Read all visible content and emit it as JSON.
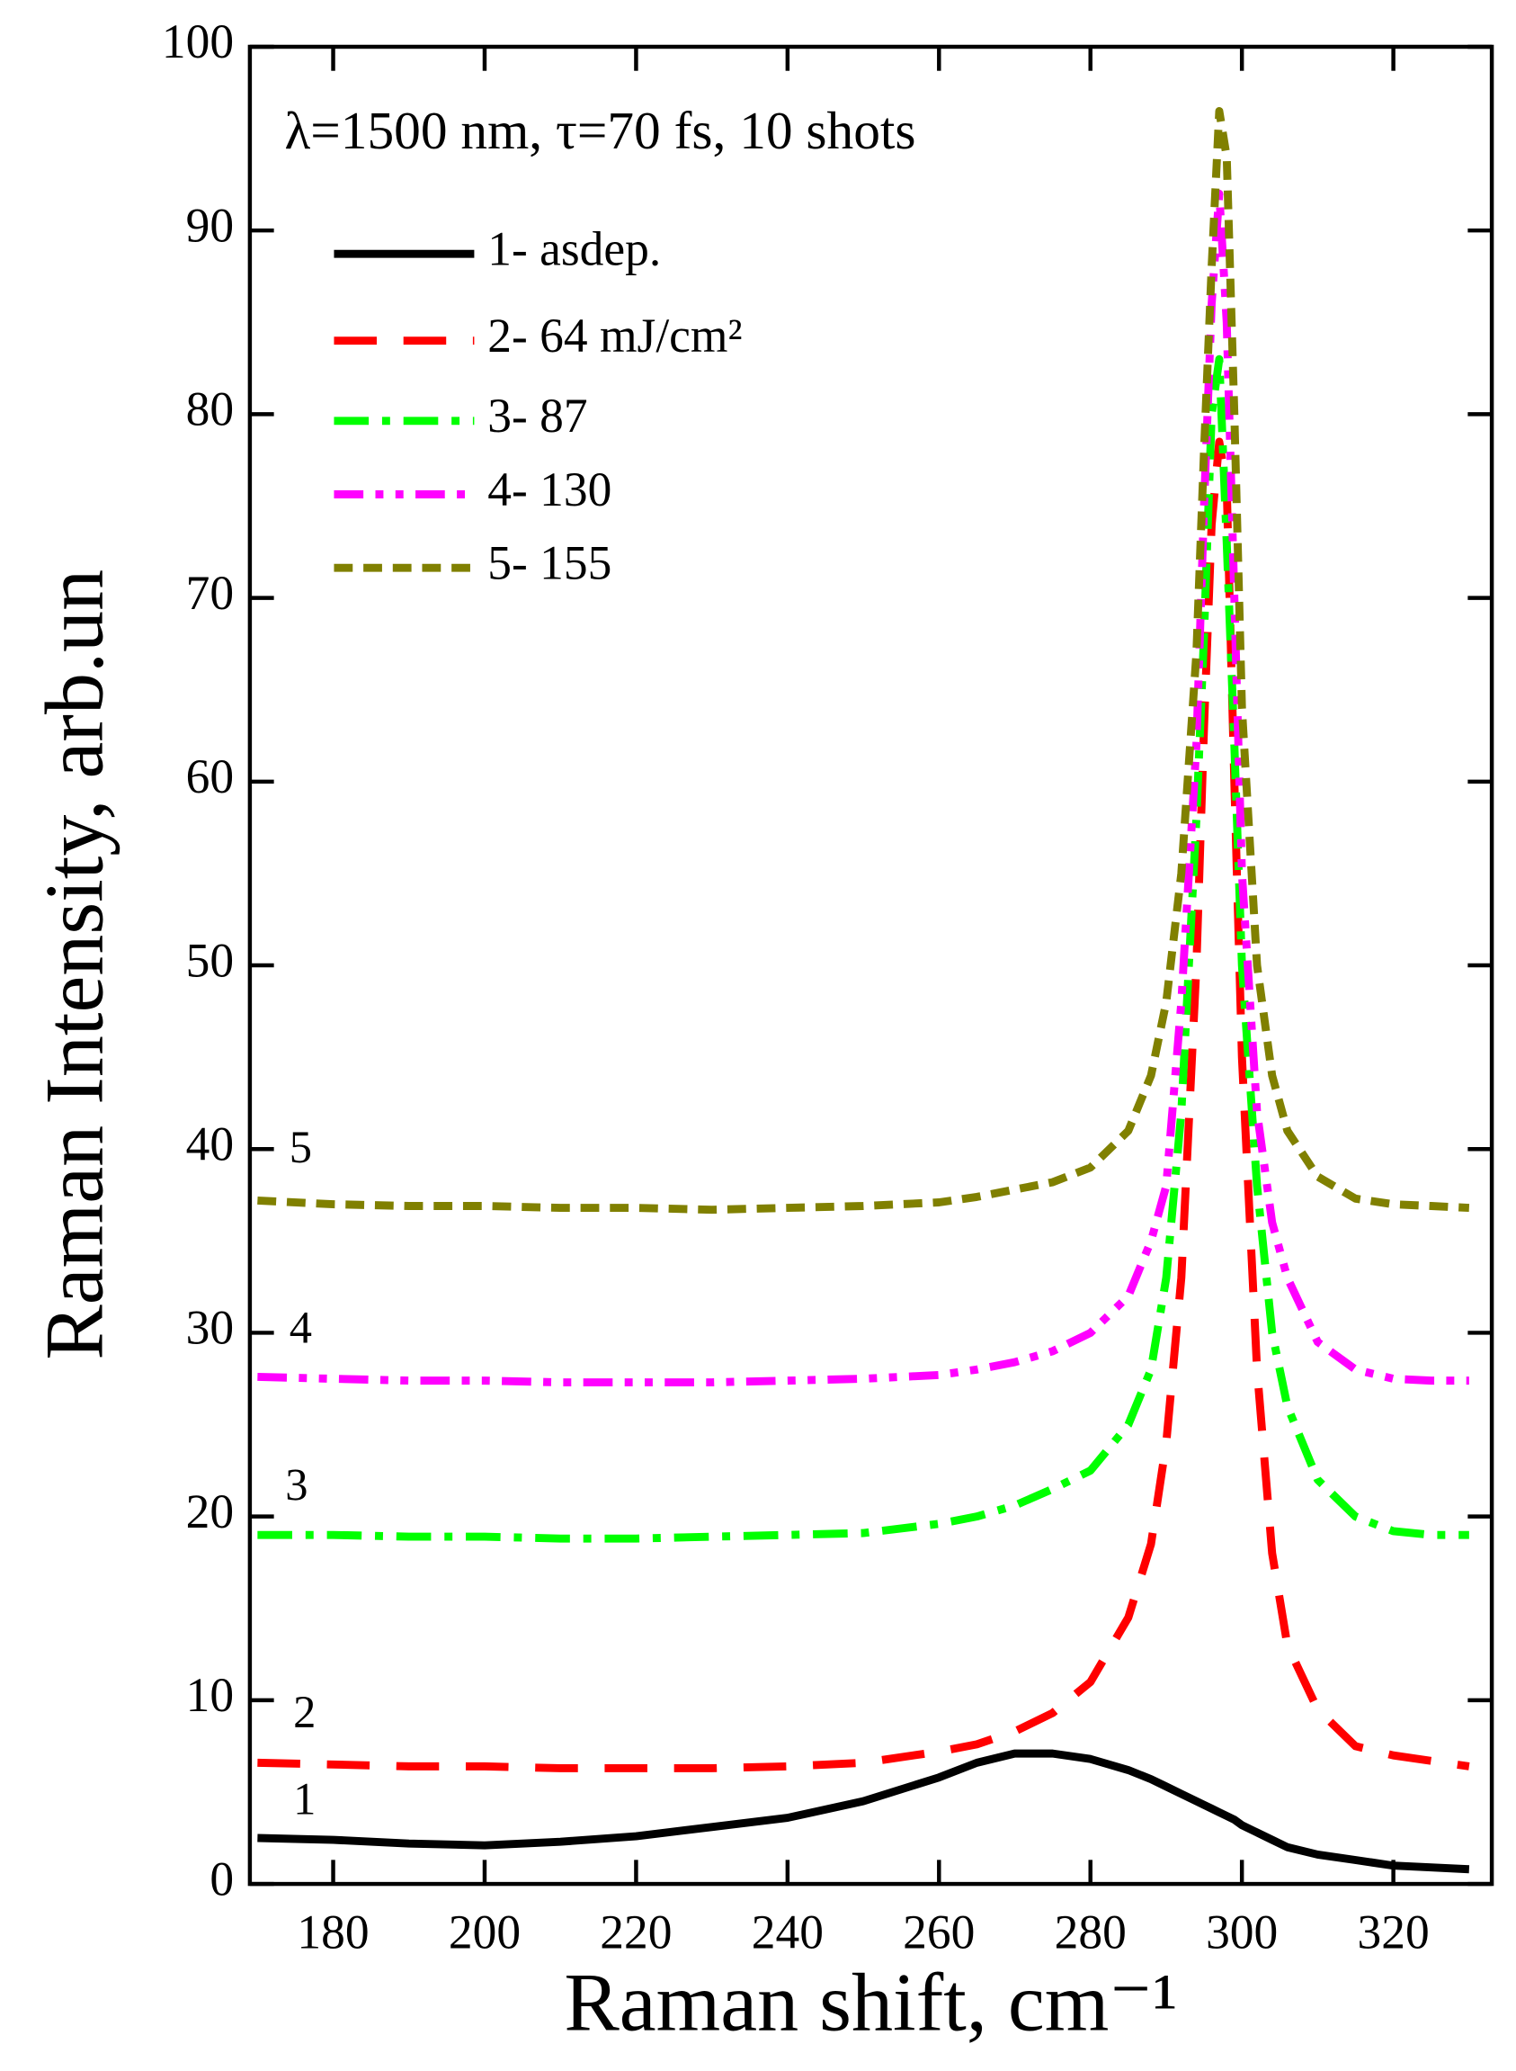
{
  "chart_data": {
    "type": "line",
    "xlabel": "Raman shift, cm⁻¹",
    "ylabel": "Raman Intensity, arb.un",
    "annotation": "λ=1500 nm, τ=70 fs, 10 shots",
    "x": [
      170,
      180,
      190,
      200,
      210,
      220,
      230,
      240,
      250,
      260,
      265,
      270,
      275,
      280,
      285,
      288,
      290,
      292,
      294,
      295,
      296,
      297,
      298,
      299,
      300,
      302,
      304,
      306,
      310,
      315,
      320,
      325,
      330
    ],
    "series": [
      {
        "name": "1- asdep.",
        "color": "#000000",
        "dash": "solid",
        "values": [
          2.5,
          2.4,
          2.2,
          2.1,
          2.3,
          2.6,
          3.1,
          3.6,
          4.5,
          5.8,
          6.6,
          7.1,
          7.1,
          6.8,
          6.2,
          5.7,
          5.3,
          4.9,
          4.5,
          4.3,
          4.1,
          3.9,
          3.7,
          3.5,
          3.2,
          2.8,
          2.4,
          2.0,
          1.6,
          1.3,
          1.0,
          0.9,
          0.8
        ]
      },
      {
        "name": "2- 64 mJ/cm²",
        "color": "#ff0000",
        "dash": "dash",
        "values": [
          6.6,
          6.5,
          6.4,
          6.4,
          6.3,
          6.3,
          6.3,
          6.4,
          6.6,
          7.2,
          7.6,
          8.3,
          9.3,
          11.0,
          14.5,
          18.5,
          24,
          33,
          50,
          63,
          74,
          78.5,
          76,
          60,
          45,
          28,
          18,
          13,
          9.5,
          7.5,
          7,
          6.7,
          6.4
        ]
      },
      {
        "name": "3- 87",
        "color": "#00ff00",
        "dash": "dashdot",
        "values": [
          19,
          19,
          18.9,
          18.9,
          18.8,
          18.8,
          18.9,
          19,
          19.1,
          19.6,
          20,
          20.6,
          21.5,
          22.5,
          25,
          28,
          33,
          42,
          58,
          68,
          80,
          83,
          73,
          62,
          50,
          38,
          30,
          26,
          22,
          20,
          19.2,
          19,
          19
        ]
      },
      {
        "name": "4- 130",
        "color": "#ff00ff",
        "dash": "dashdotdot",
        "values": [
          27.6,
          27.5,
          27.4,
          27.4,
          27.3,
          27.3,
          27.3,
          27.4,
          27.5,
          27.7,
          28,
          28.4,
          29,
          30,
          32,
          35,
          38,
          48,
          62,
          75,
          86,
          92,
          85,
          70,
          55,
          42,
          36,
          33,
          29.5,
          28,
          27.5,
          27.4,
          27.4
        ]
      },
      {
        "name": "5- 155",
        "color": "#808000",
        "dash": "shortdash",
        "values": [
          37.2,
          37,
          36.9,
          36.9,
          36.8,
          36.8,
          36.7,
          36.8,
          36.9,
          37.1,
          37.4,
          37.8,
          38.2,
          39.0,
          41,
          44,
          48,
          55,
          67,
          78,
          88,
          96.5,
          94,
          80,
          64,
          50,
          44,
          41,
          38.5,
          37.3,
          37,
          36.9,
          36.8
        ]
      }
    ],
    "curve_labels": [
      "1",
      "2",
      "3",
      "4",
      "5"
    ],
    "xlim": [
      169,
      333
    ],
    "xticks": [
      180,
      200,
      220,
      240,
      260,
      280,
      300,
      320
    ],
    "ylim": [
      0,
      100
    ],
    "yticks": [
      0,
      10,
      20,
      30,
      40,
      50,
      60,
      70,
      80,
      90,
      100
    ]
  }
}
